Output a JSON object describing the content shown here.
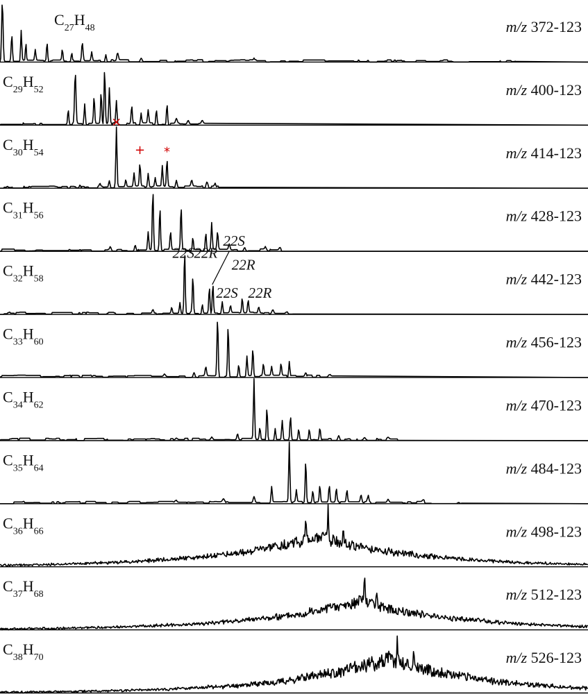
{
  "chart_data": {
    "type": "line",
    "panel_count": 11,
    "panels": [
      {
        "formula_base": "C",
        "formula_c": "27",
        "formula_h_base": "H",
        "formula_h": "48",
        "mz_italic": "m/z",
        "mz_value": "372-123",
        "peaks": [
          [
            0.2,
            0.06,
            1.0
          ],
          [
            1.0,
            0.05,
            0.45
          ],
          [
            1.8,
            0.05,
            0.5
          ],
          [
            2.2,
            0.04,
            0.3
          ],
          [
            3.0,
            0.05,
            0.18
          ],
          [
            4.0,
            0.05,
            0.32
          ],
          [
            5.3,
            0.05,
            0.2
          ],
          [
            6.1,
            0.05,
            0.15
          ],
          [
            7.0,
            0.06,
            0.3
          ],
          [
            7.8,
            0.05,
            0.15
          ],
          [
            9.0,
            0.05,
            0.12
          ],
          [
            10.0,
            0.06,
            0.14
          ],
          [
            12.0,
            0.07,
            0.06
          ],
          [
            21.6,
            0.04,
            0.03
          ],
          [
            30.5,
            0.04,
            0.03
          ],
          [
            31.3,
            0.04,
            0.03
          ]
        ],
        "x_end": 44
      },
      {
        "formula_base": "C",
        "formula_c": "29",
        "formula_h_base": "H",
        "formula_h": "52",
        "mz_italic": "m/z",
        "mz_value": "400-123",
        "peaks": [
          [
            5.8,
            0.05,
            0.25
          ],
          [
            6.4,
            0.06,
            0.85
          ],
          [
            7.2,
            0.05,
            0.35
          ],
          [
            8.0,
            0.05,
            0.45
          ],
          [
            8.6,
            0.05,
            0.55
          ],
          [
            8.9,
            0.05,
            0.95
          ],
          [
            9.3,
            0.05,
            0.6
          ],
          [
            9.9,
            0.05,
            0.4
          ],
          [
            11.2,
            0.05,
            0.3
          ],
          [
            12.0,
            0.05,
            0.2
          ],
          [
            12.6,
            0.05,
            0.22
          ],
          [
            13.3,
            0.05,
            0.25
          ],
          [
            14.2,
            0.05,
            0.35
          ],
          [
            15.0,
            0.07,
            0.08
          ],
          [
            16.0,
            0.07,
            0.06
          ],
          [
            17.2,
            0.07,
            0.05
          ]
        ],
        "x_end": 17.8
      },
      {
        "formula_base": "C",
        "formula_c": "30",
        "formula_h_base": "H",
        "formula_h": "54",
        "mz_italic": "m/z",
        "mz_value": "414-123",
        "peaks": [
          [
            6.8,
            0.05,
            0.05
          ],
          [
            8.5,
            0.05,
            0.05
          ],
          [
            9.3,
            0.05,
            0.12
          ],
          [
            9.9,
            0.05,
            1.0
          ],
          [
            10.7,
            0.05,
            0.12
          ],
          [
            11.4,
            0.05,
            0.22
          ],
          [
            11.9,
            0.05,
            0.38
          ],
          [
            12.6,
            0.05,
            0.22
          ],
          [
            13.2,
            0.05,
            0.15
          ],
          [
            13.8,
            0.05,
            0.35
          ],
          [
            14.2,
            0.05,
            0.45
          ],
          [
            15.0,
            0.06,
            0.12
          ],
          [
            16.3,
            0.06,
            0.1
          ],
          [
            17.6,
            0.06,
            0.07
          ],
          [
            18.3,
            0.06,
            0.05
          ]
        ],
        "x_end": 18.7,
        "markers": [
          {
            "symbol": "×",
            "x": 9.9,
            "y": 1.02
          },
          {
            "symbol": "+",
            "x": 11.9,
            "y": 0.55
          },
          {
            "symbol": "*",
            "x": 14.2,
            "y": 0.52
          }
        ]
      },
      {
        "formula_base": "C",
        "formula_c": "31",
        "formula_h_base": "H",
        "formula_h": "56",
        "mz_italic": "m/z",
        "mz_value": "428-123",
        "peaks": [
          [
            9.4,
            0.06,
            0.06
          ],
          [
            11.5,
            0.06,
            0.1
          ],
          [
            12.6,
            0.05,
            0.3
          ],
          [
            13.0,
            0.05,
            1.0
          ],
          [
            13.6,
            0.05,
            0.72
          ],
          [
            14.5,
            0.05,
            0.3
          ],
          [
            15.4,
            0.05,
            0.72
          ],
          [
            16.4,
            0.05,
            0.2
          ],
          [
            17.5,
            0.05,
            0.3
          ],
          [
            18.0,
            0.05,
            0.45
          ],
          [
            18.5,
            0.05,
            0.3
          ],
          [
            19.5,
            0.06,
            0.1
          ],
          [
            20.8,
            0.07,
            0.06
          ],
          [
            22.6,
            0.07,
            0.05
          ],
          [
            23.8,
            0.07,
            0.04
          ]
        ],
        "x_end": 24
      },
      {
        "formula_base": "C",
        "formula_c": "32",
        "formula_h_base": "H",
        "formula_h": "58",
        "mz_italic": "m/z",
        "mz_value": "442-123",
        "peaks": [
          [
            13.0,
            0.06,
            0.06
          ],
          [
            14.6,
            0.05,
            0.1
          ],
          [
            15.3,
            0.05,
            0.18
          ],
          [
            15.7,
            0.05,
            1.05
          ],
          [
            16.4,
            0.05,
            0.6
          ],
          [
            17.2,
            0.05,
            0.15
          ],
          [
            17.8,
            0.05,
            0.45
          ],
          [
            18.1,
            0.05,
            0.5
          ],
          [
            18.9,
            0.05,
            0.2
          ],
          [
            19.6,
            0.05,
            0.12
          ],
          [
            20.6,
            0.05,
            0.25
          ],
          [
            21.1,
            0.05,
            0.22
          ],
          [
            22.0,
            0.06,
            0.1
          ],
          [
            23.2,
            0.07,
            0.06
          ],
          [
            24.4,
            0.07,
            0.04
          ]
        ],
        "x_end": 24.9,
        "labels": [
          {
            "text": "22S",
            "x": 15.6,
            "y": 0.95
          },
          {
            "text": "22R",
            "x": 17.5,
            "y": 0.95
          },
          {
            "text": "22S",
            "x": 19.9,
            "y": 1.15
          },
          {
            "text": "22R",
            "x": 20.7,
            "y": 0.75
          },
          {
            "text": "22S",
            "x": 19.3,
            "y": 0.28
          },
          {
            "text": "22R",
            "x": 22.1,
            "y": 0.28
          }
        ]
      },
      {
        "formula_base": "C",
        "formula_c": "33",
        "formula_h_base": "H",
        "formula_h": "60",
        "mz_italic": "m/z",
        "mz_value": "456-123",
        "peaks": [
          [
            14.0,
            0.08,
            0.04
          ],
          [
            16.5,
            0.07,
            0.08
          ],
          [
            17.5,
            0.06,
            0.15
          ],
          [
            18.5,
            0.05,
            1.0
          ],
          [
            19.4,
            0.05,
            0.85
          ],
          [
            20.3,
            0.05,
            0.2
          ],
          [
            21.0,
            0.05,
            0.35
          ],
          [
            21.5,
            0.05,
            0.45
          ],
          [
            22.4,
            0.05,
            0.2
          ],
          [
            23.1,
            0.05,
            0.15
          ],
          [
            23.9,
            0.05,
            0.2
          ],
          [
            24.6,
            0.05,
            0.25
          ],
          [
            26.0,
            0.07,
            0.06
          ],
          [
            28.0,
            0.08,
            0.04
          ]
        ],
        "x_end": 29
      },
      {
        "formula_base": "C",
        "formula_c": "34",
        "formula_h_base": "H",
        "formula_h": "62",
        "mz_italic": "m/z",
        "mz_value": "470-123",
        "peaks": [
          [
            15.0,
            0.08,
            0.03
          ],
          [
            18.0,
            0.08,
            0.05
          ],
          [
            20.2,
            0.06,
            0.1
          ],
          [
            21.6,
            0.05,
            1.0
          ],
          [
            22.1,
            0.05,
            0.2
          ],
          [
            22.7,
            0.05,
            0.55
          ],
          [
            23.4,
            0.05,
            0.2
          ],
          [
            24.0,
            0.05,
            0.32
          ],
          [
            24.7,
            0.05,
            0.4
          ],
          [
            25.4,
            0.05,
            0.18
          ],
          [
            26.3,
            0.05,
            0.18
          ],
          [
            27.2,
            0.05,
            0.2
          ],
          [
            28.8,
            0.07,
            0.08
          ],
          [
            31.0,
            0.08,
            0.04
          ],
          [
            33.0,
            0.08,
            0.03
          ]
        ],
        "x_end": 34
      },
      {
        "formula_base": "C",
        "formula_c": "35",
        "formula_h_base": "H",
        "formula_h": "64",
        "mz_italic": "m/z",
        "mz_value": "484-123",
        "peaks": [
          [
            15.0,
            0.08,
            0.02
          ],
          [
            19.0,
            0.08,
            0.05
          ],
          [
            21.6,
            0.07,
            0.1
          ],
          [
            23.1,
            0.05,
            0.28
          ],
          [
            24.6,
            0.05,
            1.0
          ],
          [
            25.2,
            0.05,
            0.2
          ],
          [
            26.0,
            0.05,
            0.7
          ],
          [
            26.6,
            0.05,
            0.2
          ],
          [
            27.2,
            0.05,
            0.28
          ],
          [
            28.0,
            0.05,
            0.28
          ],
          [
            28.6,
            0.05,
            0.22
          ],
          [
            29.5,
            0.05,
            0.2
          ],
          [
            30.7,
            0.06,
            0.12
          ],
          [
            31.3,
            0.06,
            0.12
          ],
          [
            33.0,
            0.07,
            0.05
          ],
          [
            36.0,
            0.08,
            0.03
          ],
          [
            39.0,
            0.08,
            0.02
          ]
        ],
        "x_end": 39.3
      },
      {
        "formula_base": "C",
        "formula_c": "36",
        "formula_h_base": "H",
        "formula_h": "66",
        "mz_italic": "m/z",
        "mz_value": "498-123",
        "envelope": {
          "center": 27.0,
          "width": 9.0,
          "height": 0.55,
          "noise": 0.18,
          "seed": 36
        },
        "peaks": [
          [
            26.0,
            0.05,
            0.25
          ],
          [
            27.9,
            0.05,
            0.55
          ],
          [
            29.2,
            0.05,
            0.3
          ]
        ],
        "x_end": 50
      },
      {
        "formula_base": "C",
        "formula_c": "37",
        "formula_h_base": "H",
        "formula_h": "68",
        "mz_italic": "m/z",
        "mz_value": "512-123",
        "envelope": {
          "center": 30.5,
          "width": 9.0,
          "height": 0.52,
          "noise": 0.18,
          "seed": 37
        },
        "peaks": [
          [
            31.0,
            0.05,
            0.45
          ],
          [
            32.0,
            0.05,
            0.2
          ]
        ],
        "x_end": 50
      },
      {
        "formula_base": "C",
        "formula_c": "38",
        "formula_h_base": "H",
        "formula_h": "70",
        "mz_italic": "m/z",
        "mz_value": "526-123",
        "envelope": {
          "center": 33.0,
          "width": 8.5,
          "height": 0.6,
          "noise": 0.22,
          "seed": 38
        },
        "peaks": [
          [
            33.8,
            0.05,
            0.35
          ],
          [
            35.2,
            0.05,
            0.25
          ]
        ],
        "x_end": 50
      }
    ],
    "x_range": [
      0,
      50
    ],
    "y_range": [
      0,
      1.05
    ],
    "grid": false,
    "legend": "none"
  }
}
